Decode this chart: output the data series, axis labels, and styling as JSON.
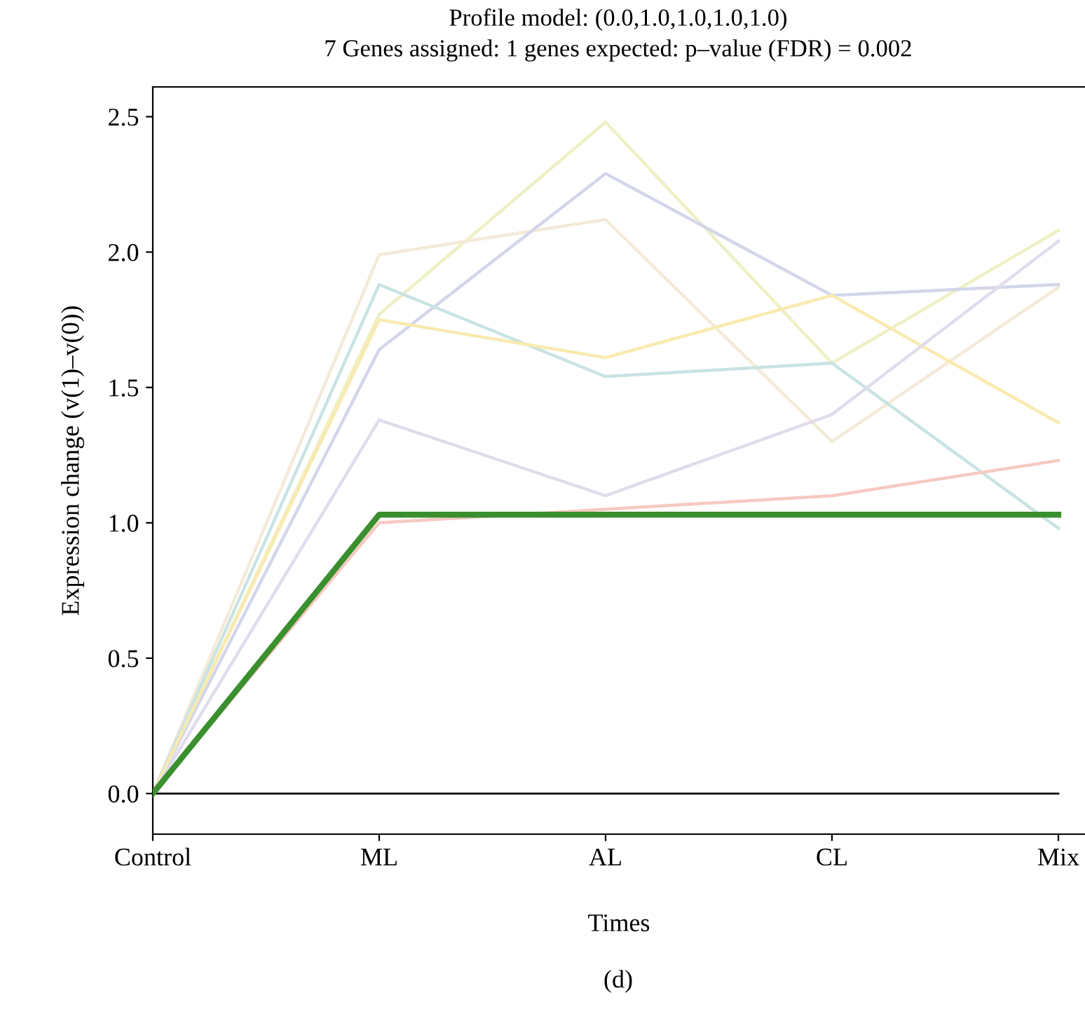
{
  "chart_data": {
    "type": "line",
    "title": "Profile model: (0.0,1.0,1.0,1.0,1.0)",
    "subtitle": "7 Genes assigned: 1 genes expected: p–value (FDR) = 0.002",
    "xlabel": "Times",
    "ylabel": "Expression change (v(1)–v(0))",
    "annotations": [
      "(d)"
    ],
    "categories": [
      "Control",
      "ML",
      "AL",
      "CL",
      "Mix"
    ],
    "ylim": [
      -0.15,
      2.61
    ],
    "yticks": [
      {
        "value": 0,
        "label": "0.0"
      },
      {
        "value": 0.5,
        "label": "0.5"
      },
      {
        "value": 1,
        "label": "1.0"
      },
      {
        "value": 1.5,
        "label": "1.5"
      },
      {
        "value": 2,
        "label": "2.0"
      },
      {
        "value": 2.5,
        "label": "2.5"
      }
    ],
    "ref_lines": [
      {
        "axis": "y",
        "value": 0,
        "color": "#000000"
      }
    ],
    "grid": false,
    "legend": false,
    "marker": "none",
    "line_style": "solid",
    "series": [
      {
        "color": "#eef0c4",
        "values": [
          0,
          1.77,
          2.48,
          1.59,
          2.08
        ]
      },
      {
        "color": "#f4ead8",
        "values": [
          0,
          1.99,
          2.12,
          1.3,
          1.87
        ]
      },
      {
        "color": "#d3d6ea",
        "values": [
          0,
          1.64,
          2.29,
          1.84,
          1.88
        ]
      },
      {
        "color": "#c9e3e3",
        "values": [
          0,
          1.88,
          1.54,
          1.59,
          0.98
        ]
      },
      {
        "color": "#f9eab0",
        "values": [
          0,
          1.75,
          1.61,
          1.84,
          1.37
        ]
      },
      {
        "color": "#e0dcec",
        "values": [
          0,
          1.38,
          1.1,
          1.4,
          2.04
        ]
      },
      {
        "color": "#f5c9c0",
        "values": [
          0,
          1.0,
          1.05,
          1.1,
          1.23
        ]
      },
      {
        "color": "#3a8f2f",
        "values": [
          0,
          1.03,
          1.03,
          1.03,
          1.03
        ]
      }
    ]
  }
}
